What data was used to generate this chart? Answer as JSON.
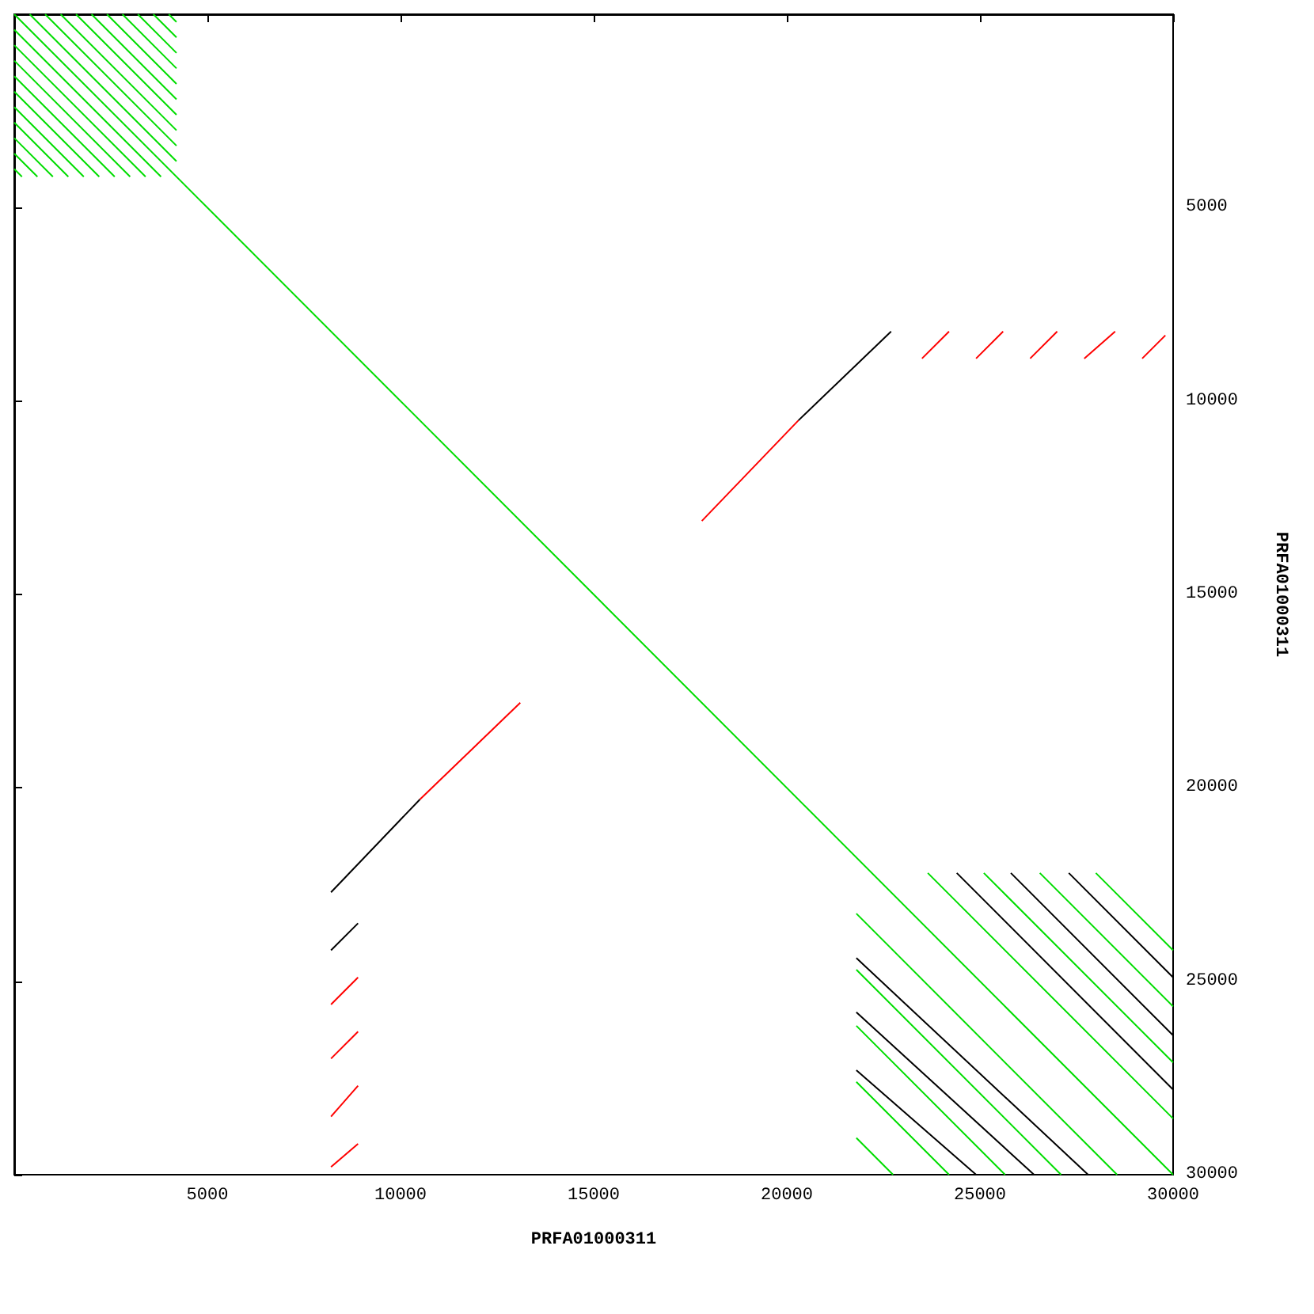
{
  "chart_data": {
    "type": "line",
    "xlabel": "PRFA01000311",
    "ylabel": "PRFA01000311",
    "xlim": [
      0,
      30000
    ],
    "ylim": [
      30000,
      0
    ],
    "xticks": [
      5000,
      10000,
      15000,
      20000,
      25000,
      30000
    ],
    "yticks": [
      5000,
      10000,
      15000,
      20000,
      25000,
      30000
    ],
    "grid": false,
    "marker": "none",
    "line_style": "solid",
    "series": [
      {
        "color": "#00dd00",
        "x": [
          0,
          30000,
          null,
          4000,
          4200,
          null,
          3600,
          4200,
          null,
          3200,
          4200,
          null,
          2800,
          4200,
          null,
          2400,
          4200,
          null,
          2000,
          4200,
          null,
          1600,
          4200,
          null,
          1200,
          4200,
          null,
          800,
          4200,
          null,
          400,
          4200,
          null,
          0,
          3800,
          null,
          0,
          3400,
          null,
          0,
          3000,
          null,
          0,
          2600,
          null,
          0,
          2200,
          null,
          0,
          1800,
          null,
          0,
          1400,
          null,
          0,
          1000,
          null,
          0,
          600,
          null,
          0,
          200,
          null,
          28000,
          30000,
          null,
          26550,
          30000,
          null,
          25100,
          30000,
          null,
          23650,
          30000,
          null,
          21800,
          28550,
          null,
          21800,
          27100,
          null,
          21800,
          25650,
          null,
          21800,
          24200,
          null,
          21800,
          22750
        ],
        "values": [
          0,
          30000,
          null,
          0,
          200,
          null,
          0,
          600,
          null,
          0,
          1000,
          null,
          0,
          1400,
          null,
          0,
          1800,
          null,
          0,
          2200,
          null,
          0,
          2600,
          null,
          0,
          3000,
          null,
          0,
          3400,
          null,
          0,
          3800,
          null,
          400,
          4200,
          null,
          800,
          4200,
          null,
          1200,
          4200,
          null,
          1600,
          4200,
          null,
          2000,
          4200,
          null,
          2400,
          4200,
          null,
          2800,
          4200,
          null,
          3200,
          4200,
          null,
          3600,
          4200,
          null,
          4000,
          4200,
          null,
          22200,
          24200,
          null,
          22200,
          25650,
          null,
          22200,
          27100,
          null,
          22200,
          28550,
          null,
          23250,
          30000,
          null,
          24700,
          30000,
          null,
          26150,
          30000,
          null,
          27600,
          30000,
          null,
          29050,
          30000
        ]
      },
      {
        "color": "#ff0000",
        "x": [
          17800,
          20300,
          null,
          13100,
          10500,
          null,
          23500,
          24200,
          null,
          24900,
          25600,
          null,
          26300,
          27000,
          null,
          27700,
          28500,
          null,
          29200,
          29800
        ],
        "values": [
          13100,
          10500,
          null,
          17800,
          20300,
          null,
          8900,
          8200,
          null,
          8900,
          8200,
          null,
          8900,
          8200,
          null,
          8900,
          8200,
          null,
          8900,
          8300
        ]
      },
      {
        "color": "#ff0000",
        "x": [
          8200,
          8900
        ],
        "values": [
          25600,
          24900
        ]
      },
      {
        "color": "#ff0000",
        "x": [
          8200,
          8900
        ],
        "values": [
          27000,
          26300
        ]
      },
      {
        "color": "#ff0000",
        "x": [
          8200,
          8900
        ],
        "values": [
          28500,
          27700
        ]
      },
      {
        "color": "#ff0000",
        "x": [
          8200,
          8900
        ],
        "values": [
          29800,
          29200
        ]
      },
      {
        "color": "#000000",
        "x": [
          20300,
          22700,
          null,
          10500,
          8200,
          null,
          27300,
          30000,
          null,
          25800,
          30000,
          null,
          24400,
          30000,
          null,
          21800,
          27800,
          null,
          21800,
          26400,
          null,
          21800,
          24900,
          null,
          8200,
          8900
        ],
        "values": [
          10500,
          8200,
          null,
          20300,
          22700,
          null,
          22200,
          24900,
          null,
          22200,
          26400,
          null,
          22200,
          27800,
          null,
          24400,
          30000,
          null,
          25800,
          30000,
          null,
          27300,
          30000,
          null,
          24200,
          23500
        ]
      }
    ]
  }
}
